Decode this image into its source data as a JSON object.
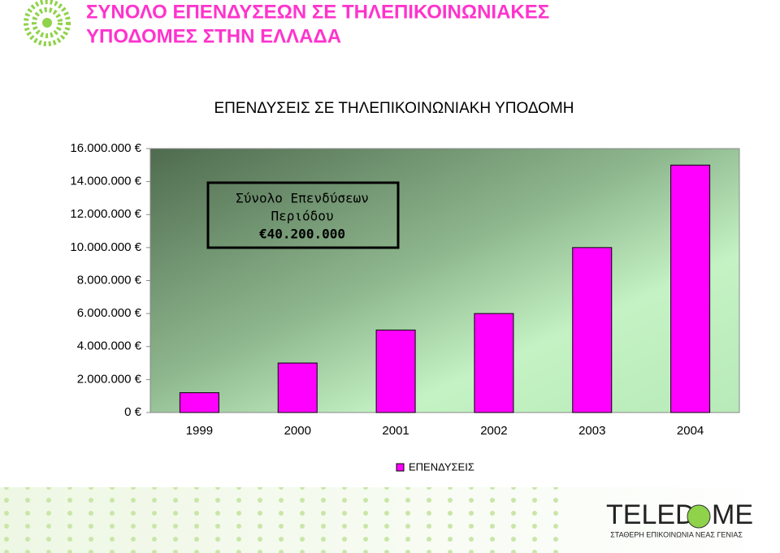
{
  "slide": {
    "title_lines": [
      "ΣΥΝΟΛΟ ΕΠΕΝΔΥΣΕΩΝ ΣΕ ΤΗΛΕΠΙΚΟΙΝΩΝΙΑΚΕΣ",
      "ΥΠΟΔΟΜΕΣ ΣΤΗΝ ΕΛΛΑΔΑ"
    ]
  },
  "chart_data": {
    "type": "bar",
    "title": "ΕΠΕΝΔΥΣΕΙΣ ΣΕ ΤΗΛΕΠΙΚΟΙΝΩΝΙΑΚΗ ΥΠΟΔΟΜΗ",
    "categories": [
      "1999",
      "2000",
      "2001",
      "2002",
      "2003",
      "2004"
    ],
    "series": [
      {
        "name": "ΕΠΕΝΔΥΣΕΙΣ",
        "color": "#ff00ff",
        "values": [
          1200000,
          3000000,
          5000000,
          6000000,
          10000000,
          15000000
        ]
      }
    ],
    "ylim": [
      0,
      16000000
    ],
    "yticks": [
      {
        "value": 0,
        "label": "0 €"
      },
      {
        "value": 2000000,
        "label": "2.000.000 €"
      },
      {
        "value": 4000000,
        "label": "4.000.000 €"
      },
      {
        "value": 6000000,
        "label": "6.000.000 €"
      },
      {
        "value": 8000000,
        "label": "8.000.000 €"
      },
      {
        "value": 10000000,
        "label": "10.000.000 €"
      },
      {
        "value": 12000000,
        "label": "12.000.000 €"
      },
      {
        "value": 14000000,
        "label": "14.000.000 €"
      },
      {
        "value": 16000000,
        "label": "16.000.000 €"
      }
    ],
    "annotation": [
      "Σύνολο Επενδύσεων",
      "Περιόδου",
      "€40.200.000"
    ],
    "legend": "bottom"
  },
  "logo": {
    "left": "TELED",
    "right": "ME",
    "tagline": "ΣΤΑΘΕΡΗ ΕΠΙΚΟΙΝΩΝΙΑ ΝΕΑΣ ΓΕΝΙΑΣ"
  }
}
